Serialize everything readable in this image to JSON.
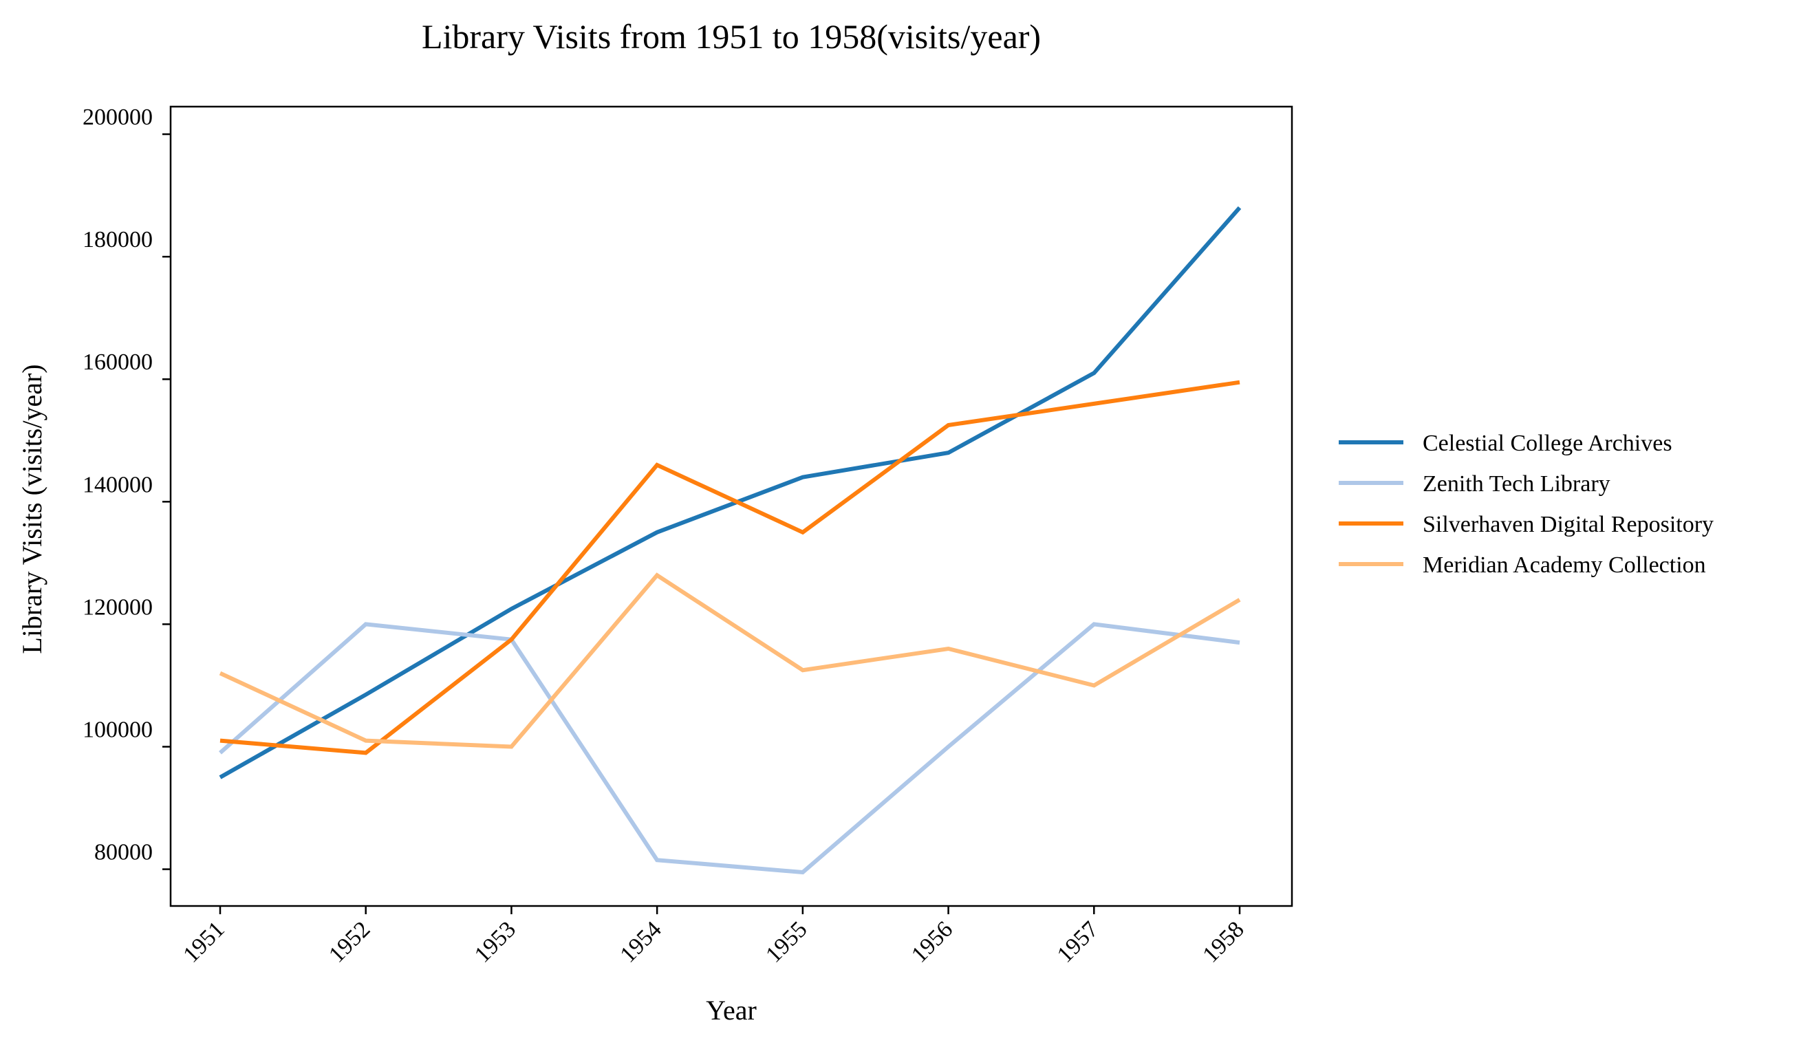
{
  "chart_data": {
    "type": "line",
    "title": "Library Visits from 1951 to 1958(visits/year)",
    "xlabel": "Year",
    "ylabel": "Library Visits (visits/year)",
    "categories": [
      "1951",
      "1952",
      "1953",
      "1954",
      "1955",
      "1956",
      "1957",
      "1958"
    ],
    "yticks": [
      80000,
      100000,
      120000,
      140000,
      160000,
      180000,
      200000
    ],
    "ytick_labels": [
      "80000",
      "100000",
      "120000",
      "140000",
      "160000",
      "180000",
      "200000"
    ],
    "ylim": [
      74000,
      204500
    ],
    "grid": false,
    "legend_position": "right",
    "series": [
      {
        "name": "Celestial College Archives",
        "color": "#1f77b4",
        "values": [
          95000,
          108500,
          122500,
          135000,
          144000,
          148000,
          161000,
          188000
        ]
      },
      {
        "name": "Zenith Tech Library",
        "color": "#aec7e8",
        "values": [
          99000,
          120000,
          117500,
          81500,
          79500,
          100000,
          120000,
          117000
        ]
      },
      {
        "name": "Silverhaven Digital Repository",
        "color": "#ff7f0e",
        "values": [
          101000,
          99000,
          117500,
          146000,
          135000,
          152500,
          156000,
          159500
        ]
      },
      {
        "name": "Meridian Academy Collection",
        "color": "#ffbb78",
        "values": [
          112000,
          101000,
          100000,
          128000,
          112500,
          116000,
          110000,
          124000
        ]
      }
    ]
  }
}
